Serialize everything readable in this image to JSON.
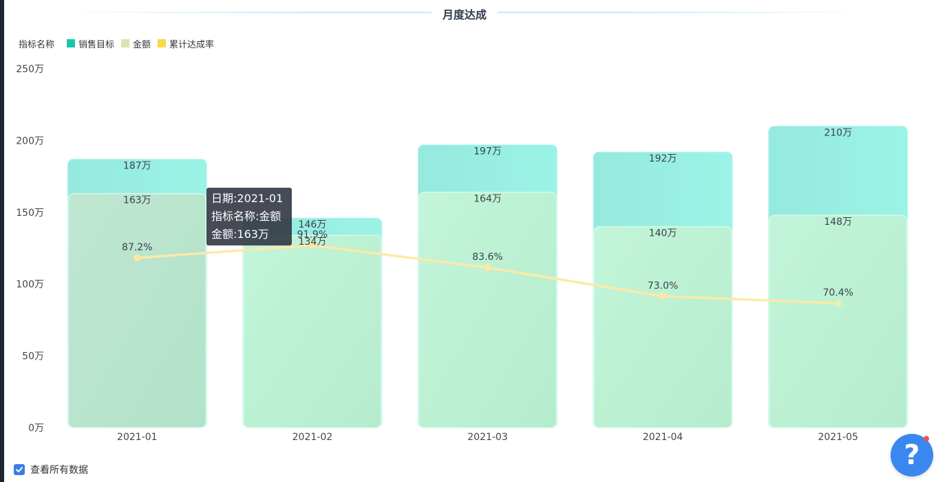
{
  "page": {
    "title": "月度达成"
  },
  "legend": {
    "title": "指标名称",
    "items": [
      {
        "label": "销售目标",
        "color": "#16c9a8"
      },
      {
        "label": "金额",
        "color": "#d9e4b3"
      },
      {
        "label": "累计达成率",
        "color": "#f7d94c"
      }
    ]
  },
  "tooltip": {
    "line1": "日期:2021-01",
    "line2": "指标名称:金额",
    "line3": "金额:163万"
  },
  "footer": {
    "checkbox_label": "查看所有数据",
    "checked": true
  },
  "help": {
    "glyph": "?",
    "icon": "question-icon"
  },
  "chart_data": {
    "type": "bar",
    "title": "月度达成",
    "categories": [
      "2021-01",
      "2021-02",
      "2021-03",
      "2021-04",
      "2021-05"
    ],
    "series": [
      {
        "name": "销售目标",
        "kind": "bar",
        "values": [
          187,
          146,
          197,
          192,
          210
        ],
        "labels": [
          "187万",
          "146万",
          "197万",
          "192万",
          "210万"
        ],
        "color": "#98f0e4"
      },
      {
        "name": "金额",
        "kind": "bar",
        "values": [
          163,
          134,
          164,
          140,
          148
        ],
        "labels": [
          "163万",
          "134万",
          "164万",
          "140万",
          "148万"
        ],
        "color": "#bdf3d7"
      },
      {
        "name": "累计达成率",
        "kind": "line",
        "values": [
          87.2,
          91.9,
          83.6,
          73.0,
          70.4
        ],
        "labels": [
          "87.2%",
          "91.9%",
          "83.6%",
          "73.0%",
          "70.4%"
        ],
        "color": "#fde9a8"
      }
    ],
    "yAxis": {
      "min": 0,
      "max": 250,
      "ticks": [
        0,
        50,
        100,
        150,
        200,
        250
      ],
      "tick_labels": [
        "0万",
        "50万",
        "100万",
        "150万",
        "200万",
        "250万"
      ]
    },
    "grid": false,
    "legend_position": "top-left"
  }
}
